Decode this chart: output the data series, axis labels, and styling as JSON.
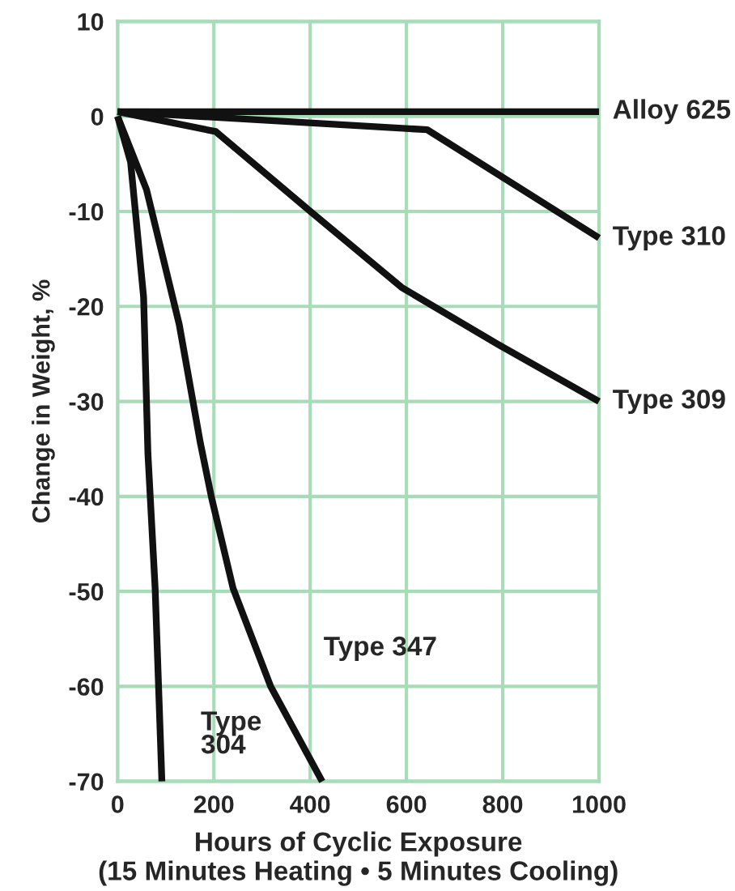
{
  "chart_data": {
    "type": "line",
    "xlabel": "Hours of Cyclic Exposure\n(15 Minutes Heating • 5 Minutes Cooling)",
    "ylabel": "Change in Weight, %",
    "series": [
      {
        "name": "Alloy 625",
        "color": "#111111",
        "x": [
          0,
          1000
        ],
        "values": [
          0.5,
          0.5
        ]
      },
      {
        "name": "Type 310",
        "color": "#111111",
        "x": [
          0,
          643,
          1000
        ],
        "values": [
          0.5,
          -1.4,
          -12.8
        ]
      },
      {
        "name": "Type 309",
        "color": "#111111",
        "x": [
          0,
          204,
          391,
          590,
          790,
          1000
        ],
        "values": [
          0.5,
          -1.6,
          -9.6,
          -18,
          -24,
          -30
        ]
      },
      {
        "name": "Type 347",
        "color": "#111111",
        "x": [
          0,
          60,
          128,
          172,
          195,
          240,
          318,
          425
        ],
        "values": [
          0,
          -7.7,
          -21.9,
          -34.4,
          -40.1,
          -49.7,
          -60,
          -70
        ]
      },
      {
        "name": "Type\n304",
        "color": "#111111",
        "x": [
          0,
          27,
          54,
          63,
          78,
          92
        ],
        "values": [
          0,
          -4.8,
          -19,
          -35.5,
          -49.7,
          -70
        ]
      }
    ],
    "xlim": [
      0,
      1000
    ],
    "xticks": [
      0,
      200,
      400,
      600,
      800,
      1000
    ],
    "ylim": [
      -70,
      10
    ],
    "yticks": [
      -70,
      -60,
      -50,
      -40,
      -30,
      -20,
      -10,
      0,
      10
    ],
    "grid": true,
    "line_style": "solid",
    "marker": "none"
  }
}
